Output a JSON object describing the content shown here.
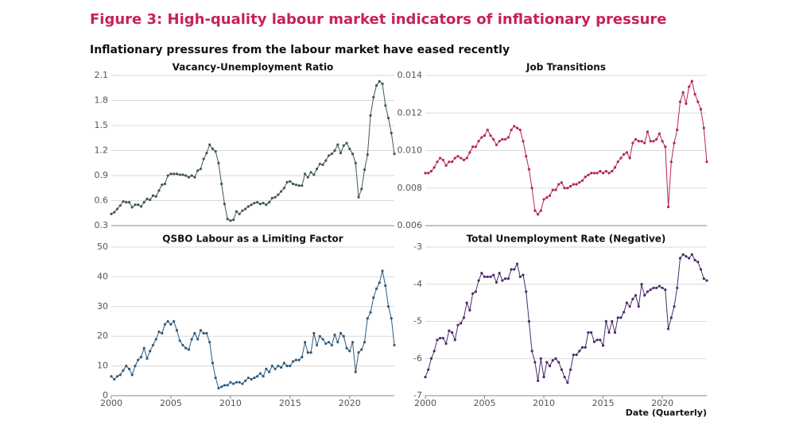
{
  "title": "Figure 3: High-quality labour market indicators of inflationary pressure",
  "subtitle": "Inflationary pressures from the labour market have eased recently",
  "x_axis_label": "Date (Quarterly)",
  "chart_data": [
    {
      "type": "line",
      "title": "Vacancy-Unemployment Ratio",
      "color": "#3e5a4c",
      "xlim": [
        2000,
        2023.75
      ],
      "ylim": [
        0.3,
        2.1
      ],
      "yticks": [
        0.3,
        0.6,
        0.9,
        1.2,
        1.5,
        1.8,
        2.1
      ],
      "x": [
        2000,
        2000.25,
        2000.5,
        2000.75,
        2001,
        2001.25,
        2001.5,
        2001.75,
        2002,
        2002.25,
        2002.5,
        2002.75,
        2003,
        2003.25,
        2003.5,
        2003.75,
        2004,
        2004.25,
        2004.5,
        2004.75,
        2005,
        2005.25,
        2005.5,
        2005.75,
        2006,
        2006.25,
        2006.5,
        2006.75,
        2007,
        2007.25,
        2007.5,
        2007.75,
        2008,
        2008.25,
        2008.5,
        2008.75,
        2009,
        2009.25,
        2009.5,
        2009.75,
        2010,
        2010.25,
        2010.5,
        2010.75,
        2011,
        2011.25,
        2011.5,
        2011.75,
        2012,
        2012.25,
        2012.5,
        2012.75,
        2013,
        2013.25,
        2013.5,
        2013.75,
        2014,
        2014.25,
        2014.5,
        2014.75,
        2015,
        2015.25,
        2015.5,
        2015.75,
        2016,
        2016.25,
        2016.5,
        2016.75,
        2017,
        2017.25,
        2017.5,
        2017.75,
        2018,
        2018.25,
        2018.5,
        2018.75,
        2019,
        2019.25,
        2019.5,
        2019.75,
        2020,
        2020.25,
        2020.5,
        2020.75,
        2021,
        2021.25,
        2021.5,
        2021.75,
        2022,
        2022.25,
        2022.5,
        2022.75,
        2023,
        2023.25,
        2023.5,
        2023.75
      ],
      "values": [
        0.44,
        0.46,
        0.5,
        0.54,
        0.59,
        0.58,
        0.58,
        0.52,
        0.55,
        0.55,
        0.53,
        0.58,
        0.62,
        0.61,
        0.66,
        0.65,
        0.72,
        0.79,
        0.8,
        0.9,
        0.92,
        0.92,
        0.92,
        0.91,
        0.91,
        0.9,
        0.88,
        0.9,
        0.88,
        0.96,
        0.98,
        1.1,
        1.17,
        1.27,
        1.22,
        1.19,
        1.05,
        0.8,
        0.56,
        0.38,
        0.36,
        0.37,
        0.47,
        0.44,
        0.48,
        0.5,
        0.53,
        0.55,
        0.57,
        0.58,
        0.56,
        0.57,
        0.55,
        0.58,
        0.63,
        0.64,
        0.67,
        0.71,
        0.75,
        0.82,
        0.83,
        0.8,
        0.79,
        0.78,
        0.78,
        0.92,
        0.88,
        0.94,
        0.91,
        0.98,
        1.04,
        1.03,
        1.08,
        1.14,
        1.16,
        1.2,
        1.27,
        1.17,
        1.26,
        1.29,
        1.22,
        1.16,
        1.05,
        0.64,
        0.74,
        0.97,
        1.15,
        1.62,
        1.84,
        1.98,
        2.03,
        2.0,
        1.74,
        1.59,
        1.41,
        1.16
      ]
    },
    {
      "type": "line",
      "title": "Job Transitions",
      "color": "#b3245c",
      "xlim": [
        2000,
        2023.75
      ],
      "ylim": [
        0.006,
        0.014
      ],
      "yticks": [
        0.006,
        0.008,
        {
          "value": 0.01,
          "label": "0.010"
        },
        0.012,
        0.014
      ],
      "x": [
        2000,
        2000.25,
        2000.5,
        2000.75,
        2001,
        2001.25,
        2001.5,
        2001.75,
        2002,
        2002.25,
        2002.5,
        2002.75,
        2003,
        2003.25,
        2003.5,
        2003.75,
        2004,
        2004.25,
        2004.5,
        2004.75,
        2005,
        2005.25,
        2005.5,
        2005.75,
        2006,
        2006.25,
        2006.5,
        2006.75,
        2007,
        2007.25,
        2007.5,
        2007.75,
        2008,
        2008.25,
        2008.5,
        2008.75,
        2009,
        2009.25,
        2009.5,
        2009.75,
        2010,
        2010.25,
        2010.5,
        2010.75,
        2011,
        2011.25,
        2011.5,
        2011.75,
        2012,
        2012.25,
        2012.5,
        2012.75,
        2013,
        2013.25,
        2013.5,
        2013.75,
        2014,
        2014.25,
        2014.5,
        2014.75,
        2015,
        2015.25,
        2015.5,
        2015.75,
        2016,
        2016.25,
        2016.5,
        2016.75,
        2017,
        2017.25,
        2017.5,
        2017.75,
        2018,
        2018.25,
        2018.5,
        2018.75,
        2019,
        2019.25,
        2019.5,
        2019.75,
        2020,
        2020.25,
        2020.5,
        2020.75,
        2021,
        2021.25,
        2021.5,
        2021.75,
        2022,
        2022.25,
        2022.5,
        2022.75,
        2023,
        2023.25,
        2023.5,
        2023.75
      ],
      "values": [
        0.0088,
        0.0088,
        0.0089,
        0.0091,
        0.0094,
        0.0096,
        0.0095,
        0.0092,
        0.0094,
        0.0094,
        0.0096,
        0.0097,
        0.0096,
        0.0095,
        0.0096,
        0.0099,
        0.0102,
        0.0102,
        0.0105,
        0.0107,
        0.0108,
        0.0111,
        0.0108,
        0.0106,
        0.0103,
        0.0105,
        0.0106,
        0.0106,
        0.0107,
        0.0111,
        0.0113,
        0.0112,
        0.0111,
        0.0105,
        0.0097,
        0.009,
        0.008,
        0.0068,
        0.0066,
        0.0068,
        0.0074,
        0.0075,
        0.0076,
        0.0079,
        0.0079,
        0.0082,
        0.0083,
        0.008,
        0.008,
        0.0081,
        0.0082,
        0.0082,
        0.0083,
        0.0084,
        0.0086,
        0.0087,
        0.0088,
        0.0088,
        0.0088,
        0.0089,
        0.0088,
        0.0089,
        0.0088,
        0.0089,
        0.0091,
        0.0094,
        0.0096,
        0.0098,
        0.0099,
        0.0096,
        0.0104,
        0.0106,
        0.0105,
        0.0105,
        0.0104,
        0.011,
        0.0105,
        0.0105,
        0.0106,
        0.0109,
        0.0105,
        0.0102,
        0.007,
        0.0094,
        0.0104,
        0.0111,
        0.0126,
        0.0131,
        0.0125,
        0.0134,
        0.0137,
        0.013,
        0.0126,
        0.0122,
        0.0112,
        0.0094
      ]
    },
    {
      "type": "line",
      "title": "QSBO Labour as a Limiting Factor",
      "color": "#2f5b7c",
      "xlim": [
        2000,
        2023.75
      ],
      "ylim": [
        0,
        50
      ],
      "yticks": [
        0,
        10,
        20,
        30,
        40,
        50
      ],
      "xticks": [
        2000,
        2005,
        2010,
        2015,
        2020
      ],
      "x": [
        2000,
        2000.25,
        2000.5,
        2000.75,
        2001,
        2001.25,
        2001.5,
        2001.75,
        2002,
        2002.25,
        2002.5,
        2002.75,
        2003,
        2003.25,
        2003.5,
        2003.75,
        2004,
        2004.25,
        2004.5,
        2004.75,
        2005,
        2005.25,
        2005.5,
        2005.75,
        2006,
        2006.25,
        2006.5,
        2006.75,
        2007,
        2007.25,
        2007.5,
        2007.75,
        2008,
        2008.25,
        2008.5,
        2008.75,
        2009,
        2009.25,
        2009.5,
        2009.75,
        2010,
        2010.25,
        2010.5,
        2010.75,
        2011,
        2011.25,
        2011.5,
        2011.75,
        2012,
        2012.25,
        2012.5,
        2012.75,
        2013,
        2013.25,
        2013.5,
        2013.75,
        2014,
        2014.25,
        2014.5,
        2014.75,
        2015,
        2015.25,
        2015.5,
        2015.75,
        2016,
        2016.25,
        2016.5,
        2016.75,
        2017,
        2017.25,
        2017.5,
        2017.75,
        2018,
        2018.25,
        2018.5,
        2018.75,
        2019,
        2019.25,
        2019.5,
        2019.75,
        2020,
        2020.25,
        2020.5,
        2020.75,
        2021,
        2021.25,
        2021.5,
        2021.75,
        2022,
        2022.25,
        2022.5,
        2022.75,
        2023,
        2023.25,
        2023.5,
        2023.75
      ],
      "values": [
        6.5,
        5.5,
        6.5,
        7,
        8.5,
        10,
        9,
        7,
        10,
        12,
        13,
        16,
        12.5,
        15,
        17,
        19,
        21.5,
        21,
        24,
        25,
        24,
        25,
        22,
        18.5,
        17,
        16,
        15.5,
        19,
        21,
        19,
        22,
        21,
        21,
        18,
        11,
        6,
        2.5,
        3,
        3.5,
        3.5,
        4.5,
        4,
        4.5,
        4.5,
        4,
        5,
        6,
        5.5,
        6,
        6.5,
        7.5,
        6.5,
        9,
        8,
        10,
        9,
        10,
        9.5,
        11,
        10,
        10,
        11.5,
        12,
        12,
        13,
        18,
        14.5,
        14.5,
        21,
        17,
        20,
        19,
        17.5,
        18,
        17,
        20.5,
        18,
        21,
        20,
        16,
        15,
        18,
        8,
        14.5,
        15.5,
        18,
        26,
        28,
        33,
        36,
        38,
        42,
        37,
        30,
        26,
        17
      ]
    },
    {
      "type": "line",
      "title": "Total Unemployment Rate (Negative)",
      "color": "#4b2c6c",
      "xlim": [
        2000,
        2023.75
      ],
      "ylim": [
        -7,
        -3
      ],
      "yticks": [
        -7,
        -6,
        -5,
        -4,
        -3
      ],
      "xticks": [
        2000,
        2005,
        2010,
        2015,
        2020
      ],
      "x": [
        2000,
        2000.25,
        2000.5,
        2000.75,
        2001,
        2001.25,
        2001.5,
        2001.75,
        2002,
        2002.25,
        2002.5,
        2002.75,
        2003,
        2003.25,
        2003.5,
        2003.75,
        2004,
        2004.25,
        2004.5,
        2004.75,
        2005,
        2005.25,
        2005.5,
        2005.75,
        2006,
        2006.25,
        2006.5,
        2006.75,
        2007,
        2007.25,
        2007.5,
        2007.75,
        2008,
        2008.25,
        2008.5,
        2008.75,
        2009,
        2009.25,
        2009.5,
        2009.75,
        2010,
        2010.25,
        2010.5,
        2010.75,
        2011,
        2011.25,
        2011.5,
        2011.75,
        2012,
        2012.25,
        2012.5,
        2012.75,
        2013,
        2013.25,
        2013.5,
        2013.75,
        2014,
        2014.25,
        2014.5,
        2014.75,
        2015,
        2015.25,
        2015.5,
        2015.75,
        2016,
        2016.25,
        2016.5,
        2016.75,
        2017,
        2017.25,
        2017.5,
        2017.75,
        2018,
        2018.25,
        2018.5,
        2018.75,
        2019,
        2019.25,
        2019.5,
        2019.75,
        2020,
        2020.25,
        2020.5,
        2020.75,
        2021,
        2021.25,
        2021.5,
        2021.75,
        2022,
        2022.25,
        2022.5,
        2022.75,
        2023,
        2023.25,
        2023.5,
        2023.75
      ],
      "values": [
        -6.5,
        -6.3,
        -6.0,
        -5.8,
        -5.5,
        -5.45,
        -5.45,
        -5.6,
        -5.25,
        -5.3,
        -5.5,
        -5.1,
        -5.05,
        -4.9,
        -4.5,
        -4.7,
        -4.25,
        -4.2,
        -3.9,
        -3.7,
        -3.8,
        -3.8,
        -3.8,
        -3.75,
        -3.95,
        -3.7,
        -3.9,
        -3.85,
        -3.85,
        -3.6,
        -3.6,
        -3.45,
        -3.8,
        -3.75,
        -4.2,
        -5.0,
        -5.8,
        -6.1,
        -6.6,
        -6.0,
        -6.5,
        -6.1,
        -6.2,
        -6.05,
        -6.0,
        -6.1,
        -6.3,
        -6.5,
        -6.65,
        -6.3,
        -5.9,
        -5.9,
        -5.8,
        -5.7,
        -5.7,
        -5.3,
        -5.3,
        -5.55,
        -5.5,
        -5.5,
        -5.65,
        -5.0,
        -5.3,
        -5.0,
        -5.3,
        -4.9,
        -4.9,
        -4.75,
        -4.5,
        -4.6,
        -4.4,
        -4.3,
        -4.6,
        -4.0,
        -4.3,
        -4.2,
        -4.15,
        -4.1,
        -4.1,
        -4.05,
        -4.1,
        -4.15,
        -5.2,
        -4.9,
        -4.6,
        -4.1,
        -3.3,
        -3.2,
        -3.25,
        -3.3,
        -3.2,
        -3.35,
        -3.4,
        -3.6,
        -3.85,
        -3.9
      ]
    }
  ]
}
